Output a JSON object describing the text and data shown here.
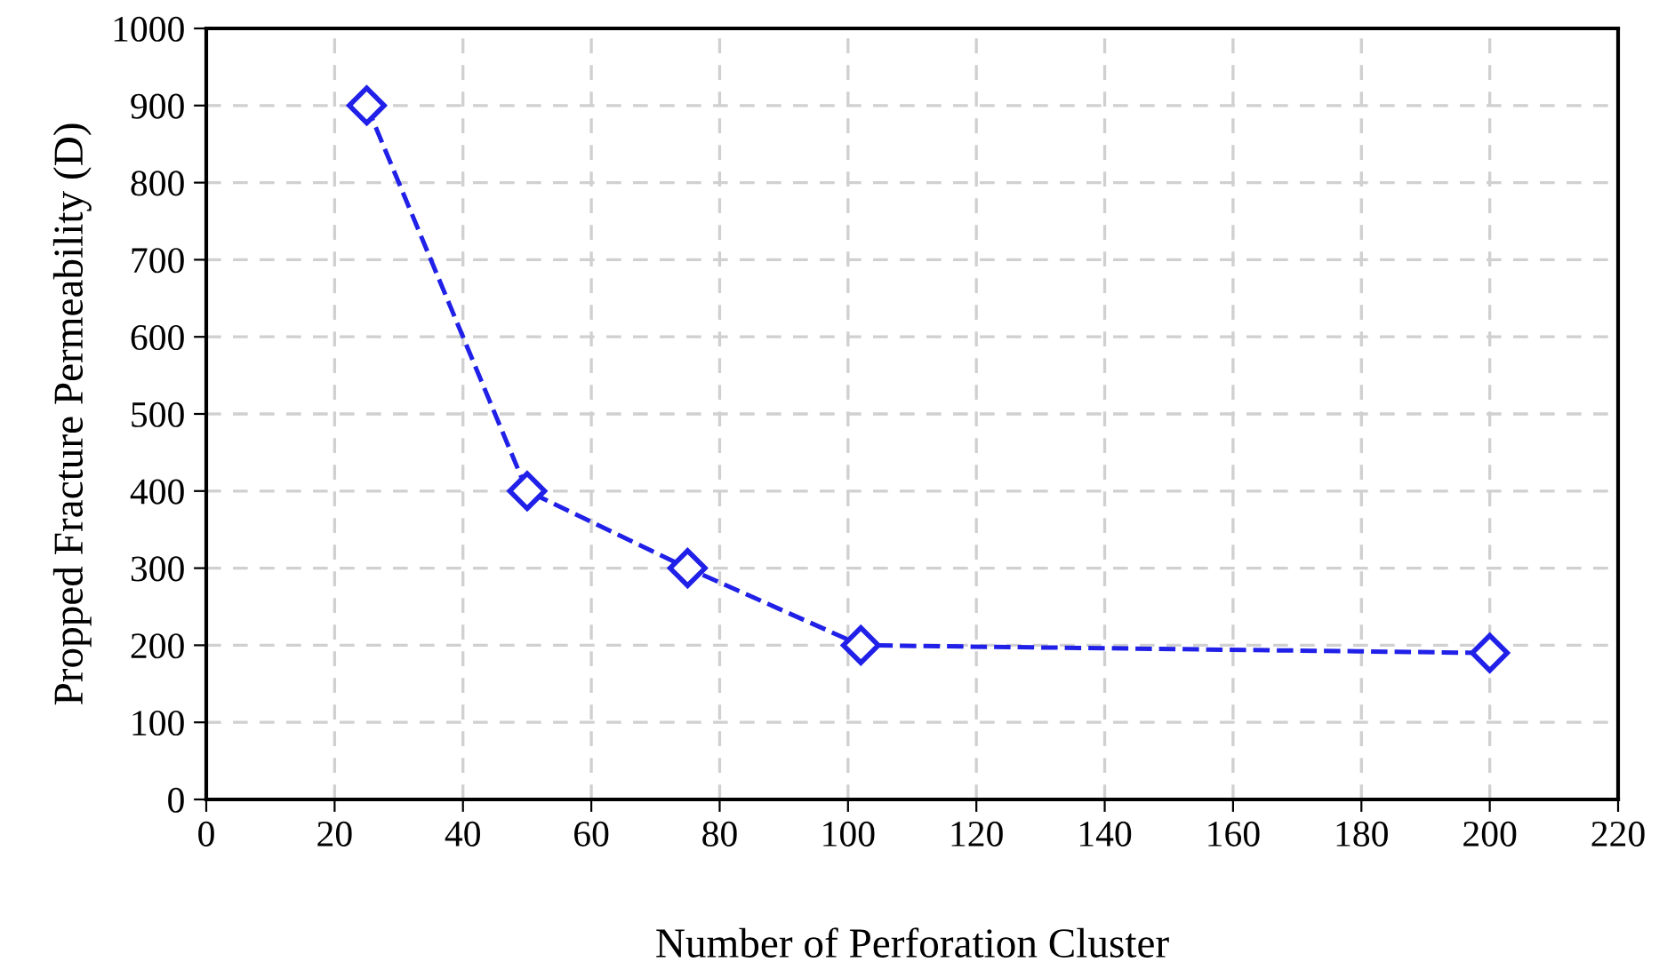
{
  "chart_data": {
    "type": "line",
    "xlabel": "Number of Perforation Cluster",
    "ylabel": "Propped Fracture Permeability (D)",
    "x": [
      25,
      50,
      75,
      102,
      200
    ],
    "series": [
      {
        "color": "#2020e8",
        "values": [
          900,
          400,
          300,
          200,
          190
        ]
      }
    ],
    "xlim": [
      0,
      220
    ],
    "xticks": [
      0,
      20,
      40,
      60,
      80,
      100,
      120,
      140,
      160,
      180,
      200,
      220
    ],
    "ylim": [
      0,
      1000
    ],
    "yticks": [
      0,
      100,
      200,
      300,
      400,
      500,
      600,
      700,
      800,
      900,
      1000
    ],
    "grid": true,
    "marker": "diamond",
    "line_style": "dashed",
    "legend": false
  }
}
